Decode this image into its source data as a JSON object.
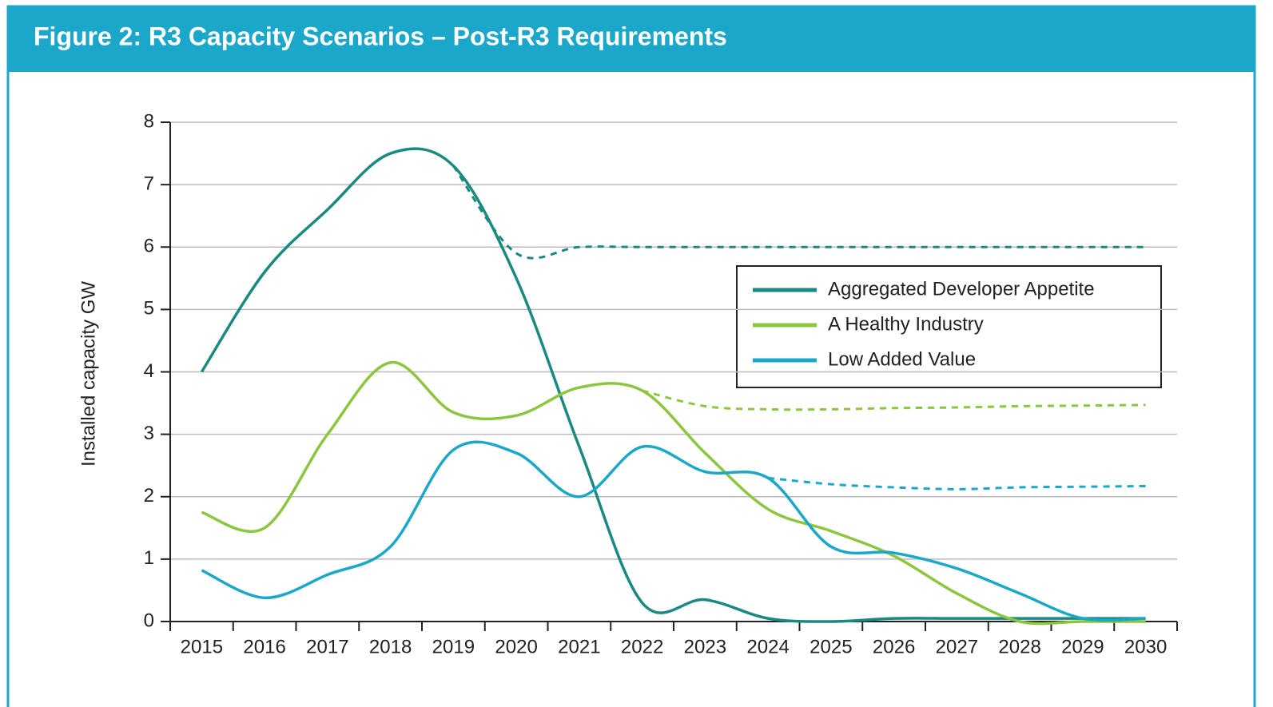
{
  "chart_data": {
    "type": "line",
    "title": "Figure 2: R3 Capacity Scenarios – Post-R3 Requirements",
    "y_label": "Installed capacity GW",
    "categories": [
      "2015",
      "2016",
      "2017",
      "2018",
      "2019",
      "2020",
      "2021",
      "2022",
      "2023",
      "2024",
      "2025",
      "2026",
      "2027",
      "2028",
      "2029",
      "2030"
    ],
    "series": [
      {
        "name": "Aggregated Developer Appetite",
        "color": "#1a8a80",
        "values": [
          4.0,
          5.6,
          6.6,
          7.5,
          7.3,
          5.5,
          2.8,
          0.3,
          0.35,
          0.05,
          0,
          0.05,
          0.05,
          0.05,
          0.05,
          0.05
        ],
        "dashed_values": [
          null,
          null,
          null,
          null,
          7.3,
          5.9,
          6.0,
          6.0,
          6.0,
          6.0,
          6.0,
          6.0,
          6.0,
          6.0,
          6.0,
          6.0
        ]
      },
      {
        "name": "A Healthy Industry",
        "color": "#8cc63f",
        "values": [
          1.75,
          1.5,
          3.0,
          4.15,
          3.35,
          3.3,
          3.75,
          3.7,
          2.7,
          1.8,
          1.45,
          1.05,
          0.45,
          0,
          0,
          0
        ],
        "dashed_values": [
          null,
          null,
          null,
          null,
          null,
          null,
          null,
          3.7,
          3.45,
          3.4,
          3.4,
          3.42,
          3.43,
          3.45,
          3.46,
          3.47
        ]
      },
      {
        "name": "Low Added Value",
        "color": "#1ba8c8",
        "values": [
          0.82,
          0.38,
          0.75,
          1.2,
          2.75,
          2.7,
          2.0,
          2.8,
          2.4,
          2.3,
          1.2,
          1.1,
          0.85,
          0.45,
          0.05,
          0.05
        ],
        "dashed_values": [
          null,
          null,
          null,
          null,
          null,
          null,
          null,
          null,
          null,
          2.3,
          2.2,
          2.15,
          2.12,
          2.15,
          2.16,
          2.17
        ]
      }
    ],
    "ylim": [
      0,
      8
    ],
    "yticks": [
      0,
      1,
      2,
      3,
      4,
      5,
      6,
      7,
      8
    ],
    "grid": true,
    "legend": "upper right"
  }
}
